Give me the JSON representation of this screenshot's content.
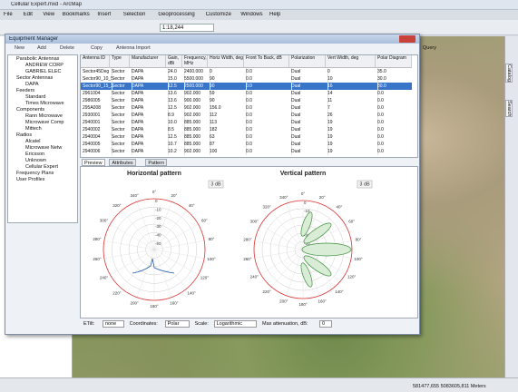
{
  "window": {
    "title": "Cellular Expert.mxd - ArcMap",
    "menu": [
      "File",
      "Edit",
      "View",
      "Bookmarks",
      "Insert",
      "Selection",
      "Geoprocessing",
      "Customize",
      "Windows",
      "Help"
    ],
    "scale": "1:18,244",
    "query": "Query",
    "side_tabs": [
      "Catalog",
      "Search"
    ],
    "status": "581477,655  5083605,811 Meters"
  },
  "dialog": {
    "title": "Equipment Manager",
    "toolbar": [
      "New",
      "Add",
      "Delete",
      "Copy",
      "Antenna Import"
    ],
    "tree": [
      {
        "label": "Parabolic Antennas",
        "children": [
          "ANDREW CORP",
          "GABRIEL ELEC"
        ]
      },
      {
        "label": "Sector Antennas",
        "children": [
          "DAPA"
        ]
      },
      {
        "label": "Feeders",
        "children": [
          "Standard",
          "Times Microwave"
        ]
      },
      {
        "label": "Components",
        "children": [
          "Rann Microwave",
          "Microwave Comp",
          "Mittech"
        ]
      },
      {
        "label": "Radios",
        "children": [
          "Alcatel",
          "Microwave Netw",
          "Ericsson",
          "Unknown",
          "Cellular Expert"
        ]
      },
      {
        "label": "Frequency Plans",
        "children": []
      },
      {
        "label": "User Profiles",
        "children": []
      }
    ],
    "table": {
      "columns": [
        "Antenna ID",
        "Type",
        "Manufacturer",
        "Gain, dBi",
        "Frequency, MHz",
        "Horiz Width, deg",
        "Front To Back, dB",
        "Polarization",
        "Vert Width, deg",
        "Polar Diagram"
      ],
      "selected": 2,
      "rows": [
        [
          "Sector45Deg",
          "Sector",
          "DAPA",
          "24.0",
          "2400.000",
          "0",
          "0.0",
          "Dual",
          "0",
          "35.0"
        ],
        [
          "Sector90_10_5",
          "Sector",
          "DAPA",
          "15.0",
          "5500.000",
          "90",
          "0.0",
          "Dual",
          "10",
          "30.0"
        ],
        [
          "Sector90_15_2",
          "Sector",
          "DAPA",
          "12.5",
          "2500.000",
          "90",
          "0.0",
          "Dual",
          "16",
          "30.0"
        ],
        [
          "2961004",
          "Sector",
          "DAPA",
          "13.6",
          "902.000",
          "59",
          "0.0",
          "Dual",
          "14",
          "0.0"
        ],
        [
          "2986005",
          "Sector",
          "DAPA",
          "13.6",
          "900.000",
          "90",
          "0.0",
          "Dual",
          "11",
          "0.0"
        ],
        [
          "295A008",
          "Sector",
          "DAPA",
          "12.5",
          "902.000",
          "156.0",
          "0.0",
          "Dual",
          "7",
          "0.0"
        ],
        [
          "2930001",
          "Sector",
          "DAPA",
          "8.9",
          "902.000",
          "112",
          "0.0",
          "Dual",
          "26",
          "0.0"
        ],
        [
          "2940001",
          "Sector",
          "DAPA",
          "10.0",
          "885.000",
          "113",
          "0.0",
          "Dual",
          "19",
          "0.0"
        ],
        [
          "2940002",
          "Sector",
          "DAPA",
          "8.5",
          "885.000",
          "182",
          "0.0",
          "Dual",
          "19",
          "0.0"
        ],
        [
          "2940004",
          "Sector",
          "DAPA",
          "12.5",
          "885.000",
          "63",
          "0.0",
          "Dual",
          "19",
          "0.0"
        ],
        [
          "2940005",
          "Sector",
          "DAPA",
          "10.7",
          "885.000",
          "87",
          "0.0",
          "Dual",
          "19",
          "0.0"
        ],
        [
          "2940006",
          "Sector",
          "DAPA",
          "10.2",
          "902.000",
          "100",
          "0.0",
          "Dual",
          "19",
          "0.0"
        ]
      ]
    },
    "tabs": [
      "Preview",
      "Attributes",
      "Pattern"
    ],
    "horizontal": {
      "title": "Horizontal pattern",
      "button": "3 dB"
    },
    "vertical": {
      "title": "Vertical pattern",
      "button": "3 dB"
    },
    "angles": [
      "0°",
      "20°",
      "40°",
      "60°",
      "80°",
      "100°",
      "120°",
      "140°",
      "160°",
      "180°",
      "200°",
      "220°",
      "240°",
      "260°",
      "280°",
      "300°",
      "320°",
      "340°"
    ],
    "rings": [
      0,
      -10,
      -20,
      -30,
      -40,
      -50
    ],
    "controls": [
      {
        "label": "ETilt:",
        "value": "none"
      },
      {
        "label": "Coordinates:",
        "value": "Polar"
      },
      {
        "label": "Scale:",
        "value": "Logarithmic"
      },
      {
        "label": "Max attenuation, dB:",
        "value": "0"
      }
    ]
  }
}
